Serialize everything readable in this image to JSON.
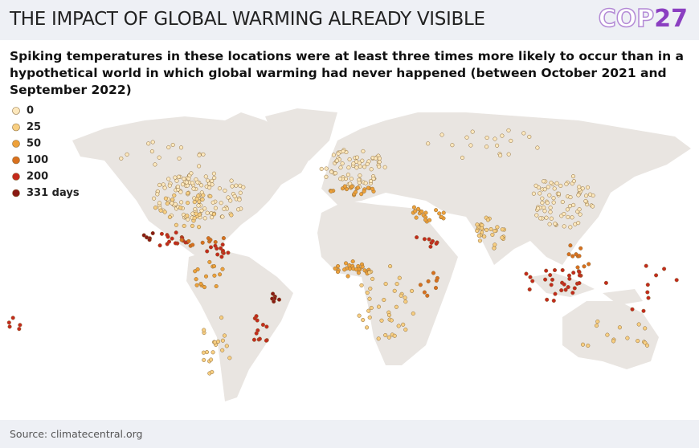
{
  "header": {
    "title": "THE IMPACT OF GLOBAL WARMING ALREADY VISIBLE",
    "logo_left": "COP",
    "logo_right": "27"
  },
  "subtitle": "Spiking temperatures in these locations were at least three times more likely to occur than in a hypothetical world in which global warming had never happened (between October 2021 and September 2022)",
  "legend": {
    "items": [
      {
        "label": "0",
        "color": "#fde8bd"
      },
      {
        "label": "25",
        "color": "#f8cf82"
      },
      {
        "label": "50",
        "color": "#eea13a"
      },
      {
        "label": "100",
        "color": "#d9701e"
      },
      {
        "label": "200",
        "color": "#c42a1c"
      },
      {
        "label": "331 days",
        "color": "#8a1a14"
      }
    ]
  },
  "footer": {
    "source": "Source: climatecentral.org"
  }
}
